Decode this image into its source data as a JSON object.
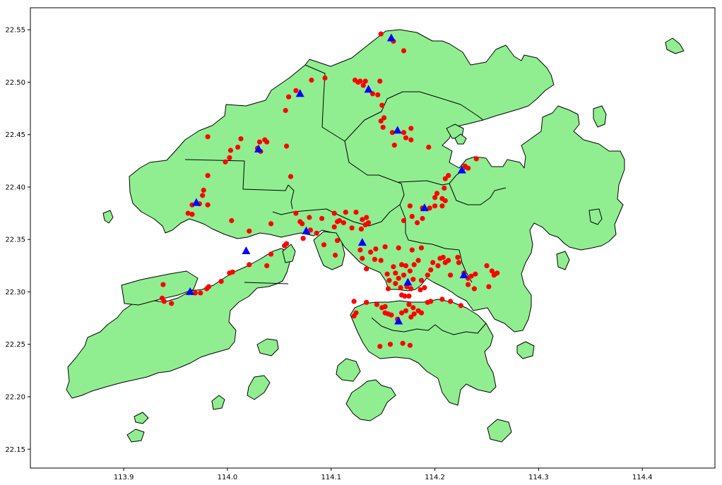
{
  "chart_data": {
    "type": "scatter",
    "title": "",
    "xlabel": "",
    "ylabel": "",
    "xlim": [
      113.81,
      114.47
    ],
    "ylim": [
      22.132,
      22.571
    ],
    "x_ticks": [
      113.9,
      114.0,
      114.1,
      114.2,
      114.3,
      114.4
    ],
    "x_tick_labels": [
      "113.9",
      "114.0",
      "114.1",
      "114.2",
      "114.3",
      "114.4"
    ],
    "y_ticks": [
      22.15,
      22.2,
      22.25,
      22.3,
      22.35,
      22.4,
      22.45,
      22.5,
      22.55
    ],
    "y_tick_labels": [
      "22.15",
      "22.20",
      "22.25",
      "22.30",
      "22.35",
      "22.40",
      "22.45",
      "22.50",
      "22.55"
    ],
    "grid": false,
    "legend": "none",
    "basemap": {
      "land_color": "#90ee90",
      "edge_color": "#000000",
      "water_color": "#ffffff"
    },
    "series": [
      {
        "marker": "circle",
        "color": "#ff0000",
        "points": [
          [
            114.148,
            22.546
          ],
          [
            114.16,
            22.539
          ],
          [
            114.17,
            22.53
          ],
          [
            114.128,
            22.501
          ],
          [
            114.123,
            22.502
          ],
          [
            114.126,
            22.5
          ],
          [
            114.131,
            22.497
          ],
          [
            114.133,
            22.501
          ],
          [
            114.147,
            22.501
          ],
          [
            114.14,
            22.489
          ],
          [
            114.145,
            22.488
          ],
          [
            114.149,
            22.478
          ],
          [
            114.081,
            22.502
          ],
          [
            114.094,
            22.504
          ],
          [
            114.066,
            22.492
          ],
          [
            114.059,
            22.486
          ],
          [
            114.056,
            22.473
          ],
          [
            114.148,
            22.463
          ],
          [
            114.151,
            22.466
          ],
          [
            114.15,
            22.457
          ],
          [
            114.159,
            22.452
          ],
          [
            114.17,
            22.452
          ],
          [
            114.172,
            22.447
          ],
          [
            114.177,
            22.445
          ],
          [
            114.177,
            22.456
          ],
          [
            114.161,
            22.44
          ],
          [
            114.194,
            22.438
          ],
          [
            114.031,
            22.443
          ],
          [
            114.036,
            22.445
          ],
          [
            114.038,
            22.443
          ],
          [
            114.029,
            22.437
          ],
          [
            114.032,
            22.434
          ],
          [
            114.013,
            22.446
          ],
          [
            114.01,
            22.438
          ],
          [
            114.003,
            22.435
          ],
          [
            114.002,
            22.428
          ],
          [
            113.998,
            22.424
          ],
          [
            113.981,
            22.448
          ],
          [
            114.057,
            22.439
          ],
          [
            114.061,
            22.41
          ],
          [
            113.981,
            22.411
          ],
          [
            113.977,
            22.397
          ],
          [
            113.976,
            22.392
          ],
          [
            113.966,
            22.383
          ],
          [
            113.973,
            22.384
          ],
          [
            113.981,
            22.383
          ],
          [
            113.962,
            22.375
          ],
          [
            113.966,
            22.374
          ],
          [
            114.004,
            22.368
          ],
          [
            114.021,
            22.358
          ],
          [
            114.042,
            22.365
          ],
          [
            114.229,
            22.42
          ],
          [
            114.232,
            22.418
          ],
          [
            114.24,
            22.427
          ],
          [
            114.21,
            22.408
          ],
          [
            114.213,
            22.411
          ],
          [
            114.209,
            22.399
          ],
          [
            114.202,
            22.394
          ],
          [
            114.2,
            22.39
          ],
          [
            114.207,
            22.389
          ],
          [
            114.21,
            22.387
          ],
          [
            114.188,
            22.38
          ],
          [
            114.176,
            22.382
          ],
          [
            114.195,
            22.38
          ],
          [
            114.2,
            22.382
          ],
          [
            114.207,
            22.382
          ],
          [
            114.178,
            22.372
          ],
          [
            114.183,
            22.366
          ],
          [
            114.188,
            22.37
          ],
          [
            114.17,
            22.368
          ],
          [
            114.178,
            22.34
          ],
          [
            114.187,
            22.342
          ],
          [
            114.066,
            22.375
          ],
          [
            114.07,
            22.367
          ],
          [
            114.072,
            22.365
          ],
          [
            114.079,
            22.371
          ],
          [
            114.091,
            22.37
          ],
          [
            114.103,
            22.375
          ],
          [
            114.114,
            22.376
          ],
          [
            114.124,
            22.376
          ],
          [
            114.13,
            22.369
          ],
          [
            114.134,
            22.371
          ],
          [
            114.136,
            22.366
          ],
          [
            114.133,
            22.364
          ],
          [
            114.129,
            22.36
          ],
          [
            114.12,
            22.361
          ],
          [
            114.112,
            22.366
          ],
          [
            114.108,
            22.368
          ],
          [
            114.106,
            22.367
          ],
          [
            114.103,
            22.362
          ],
          [
            114.073,
            22.351
          ],
          [
            114.08,
            22.359
          ],
          [
            114.086,
            22.356
          ],
          [
            114.093,
            22.345
          ],
          [
            114.106,
            22.349
          ],
          [
            114.104,
            22.335
          ],
          [
            114.128,
            22.34
          ],
          [
            114.13,
            22.332
          ],
          [
            114.138,
            22.338
          ],
          [
            114.143,
            22.341
          ],
          [
            114.152,
            22.343
          ],
          [
            114.165,
            22.342
          ],
          [
            114.134,
            22.322
          ],
          [
            114.142,
            22.331
          ],
          [
            114.148,
            22.33
          ],
          [
            114.16,
            22.324
          ],
          [
            114.168,
            22.326
          ],
          [
            114.172,
            22.325
          ],
          [
            114.154,
            22.317
          ],
          [
            114.156,
            22.311
          ],
          [
            114.162,
            22.318
          ],
          [
            114.165,
            22.313
          ],
          [
            114.17,
            22.316
          ],
          [
            114.176,
            22.32
          ],
          [
            114.18,
            22.326
          ],
          [
            114.184,
            22.33
          ],
          [
            114.179,
            22.312
          ],
          [
            114.173,
            22.305
          ],
          [
            114.177,
            22.303
          ],
          [
            114.167,
            22.304
          ],
          [
            114.162,
            22.308
          ],
          [
            114.155,
            22.303
          ],
          [
            114.168,
            22.297
          ],
          [
            114.171,
            22.296
          ],
          [
            114.175,
            22.296
          ],
          [
            114.186,
            22.302
          ],
          [
            114.19,
            22.304
          ],
          [
            114.198,
            22.328
          ],
          [
            114.205,
            22.332
          ],
          [
            114.208,
            22.333
          ],
          [
            114.21,
            22.328
          ],
          [
            114.213,
            22.33
          ],
          [
            114.203,
            22.325
          ],
          [
            114.196,
            22.321
          ],
          [
            114.193,
            22.316
          ],
          [
            114.187,
            22.311
          ],
          [
            114.215,
            22.316
          ],
          [
            114.223,
            22.328
          ],
          [
            114.222,
            22.333
          ],
          [
            114.228,
            22.318
          ],
          [
            114.232,
            22.313
          ],
          [
            114.25,
            22.325
          ],
          [
            114.255,
            22.32
          ],
          [
            114.258,
            22.317
          ],
          [
            114.26,
            22.318
          ],
          [
            114.257,
            22.316
          ],
          [
            114.239,
            22.317
          ],
          [
            114.235,
            22.315
          ],
          [
            114.252,
            22.305
          ],
          [
            114.238,
            22.303
          ],
          [
            114.232,
            22.307
          ],
          [
            114.122,
            22.291
          ],
          [
            114.134,
            22.29
          ],
          [
            114.124,
            22.28
          ],
          [
            114.122,
            22.277
          ],
          [
            114.144,
            22.288
          ],
          [
            114.149,
            22.285
          ],
          [
            114.152,
            22.286
          ],
          [
            114.152,
            22.28
          ],
          [
            114.155,
            22.279
          ],
          [
            114.158,
            22.278
          ],
          [
            114.164,
            22.274
          ],
          [
            114.168,
            22.28
          ],
          [
            114.172,
            22.282
          ],
          [
            114.177,
            22.276
          ],
          [
            114.18,
            22.279
          ],
          [
            114.184,
            22.282
          ],
          [
            114.187,
            22.28
          ],
          [
            114.179,
            22.285
          ],
          [
            114.175,
            22.288
          ],
          [
            114.193,
            22.29
          ],
          [
            114.196,
            22.291
          ],
          [
            114.207,
            22.293
          ],
          [
            114.215,
            22.291
          ],
          [
            114.225,
            22.287
          ],
          [
            114.147,
            22.248
          ],
          [
            114.157,
            22.25
          ],
          [
            114.169,
            22.251
          ],
          [
            114.176,
            22.249
          ],
          [
            113.938,
            22.307
          ],
          [
            113.937,
            22.294
          ],
          [
            113.939,
            22.291
          ],
          [
            113.946,
            22.289
          ],
          [
            113.969,
            22.299
          ],
          [
            113.974,
            22.299
          ],
          [
            113.98,
            22.303
          ],
          [
            113.982,
            22.305
          ],
          [
            113.994,
            22.31
          ],
          [
            114.002,
            22.318
          ],
          [
            114.005,
            22.319
          ],
          [
            114.021,
            22.326
          ],
          [
            114.038,
            22.325
          ],
          [
            114.042,
            22.336
          ],
          [
            114.057,
            22.346
          ],
          [
            114.055,
            22.344
          ]
        ]
      },
      {
        "marker": "triangle",
        "color": "#0000ff",
        "points": [
          [
            114.158,
            22.542
          ],
          [
            114.136,
            22.493
          ],
          [
            114.07,
            22.489
          ],
          [
            114.164,
            22.454
          ],
          [
            114.03,
            22.436
          ],
          [
            114.226,
            22.416
          ],
          [
            113.97,
            22.385
          ],
          [
            114.19,
            22.38
          ],
          [
            114.076,
            22.358
          ],
          [
            114.13,
            22.347
          ],
          [
            114.018,
            22.339
          ],
          [
            114.228,
            22.316
          ],
          [
            114.174,
            22.309
          ],
          [
            113.964,
            22.3
          ],
          [
            114.165,
            22.272
          ]
        ]
      }
    ]
  }
}
